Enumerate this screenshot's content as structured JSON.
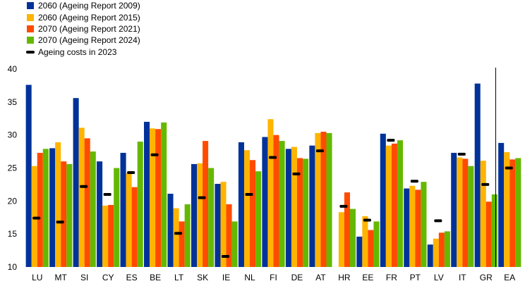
{
  "legend": {
    "series_0": "2060 (Ageing Report 2009)",
    "series_1": "2060 (Ageing Report 2015)",
    "series_2": "2070 (Ageing Report 2021)",
    "series_3": "2070 (Ageing Report 2024)",
    "marker": "Ageing costs in 2023"
  },
  "chart_data": {
    "type": "bar",
    "categories": [
      "LU",
      "MT",
      "SI",
      "CY",
      "ES",
      "BE",
      "LT",
      "SK",
      "IE",
      "NL",
      "FI",
      "DE",
      "AT",
      "HR",
      "EE",
      "FR",
      "PT",
      "LV",
      "IT",
      "GR",
      "EA"
    ],
    "ylim": [
      10,
      40
    ],
    "yticks": [
      10,
      15,
      20,
      25,
      30,
      35,
      40
    ],
    "separator_before": "EA",
    "series": [
      {
        "name": "2060 (Ageing Report 2009)",
        "color": "#003299",
        "values": [
          37.6,
          28.0,
          35.6,
          26.0,
          27.3,
          32.0,
          21.1,
          25.6,
          22.6,
          28.9,
          29.7,
          27.9,
          28.4,
          null,
          14.6,
          30.2,
          21.9,
          13.4,
          27.3,
          37.8,
          28.8
        ]
      },
      {
        "name": "2060 (Ageing Report 2015)",
        "color": "#FFB400",
        "values": [
          25.3,
          28.9,
          31.1,
          19.3,
          24.2,
          31.0,
          18.9,
          25.7,
          22.9,
          27.7,
          32.4,
          28.2,
          30.3,
          18.3,
          17.7,
          28.4,
          22.3,
          14.3,
          26.6,
          26.1,
          27.4
        ]
      },
      {
        "name": "2070 (Ageing Report 2021)",
        "color": "#FF4B00",
        "values": [
          27.3,
          26.0,
          29.5,
          19.4,
          22.1,
          30.9,
          16.9,
          29.1,
          19.5,
          26.2,
          30.0,
          26.5,
          30.5,
          21.3,
          15.6,
          28.7,
          21.7,
          15.2,
          26.4,
          19.9,
          26.3
        ]
      },
      {
        "name": "2070 (Ageing Report 2024)",
        "color": "#65B800",
        "values": [
          27.9,
          25.6,
          27.5,
          25.0,
          29.0,
          31.9,
          19.5,
          25.0,
          16.9,
          24.5,
          29.1,
          26.4,
          30.3,
          18.8,
          16.9,
          29.2,
          22.9,
          15.4,
          25.3,
          21.0,
          26.5
        ]
      }
    ],
    "markers": {
      "name": "Ageing costs in 2023",
      "color": "#000000",
      "values": [
        17.4,
        16.8,
        22.2,
        21.0,
        24.3,
        27.0,
        15.1,
        20.5,
        11.6,
        21.0,
        26.6,
        24.1,
        27.6,
        19.2,
        17.1,
        29.2,
        23.0,
        17.0,
        27.1,
        22.5,
        25.0
      ]
    }
  }
}
